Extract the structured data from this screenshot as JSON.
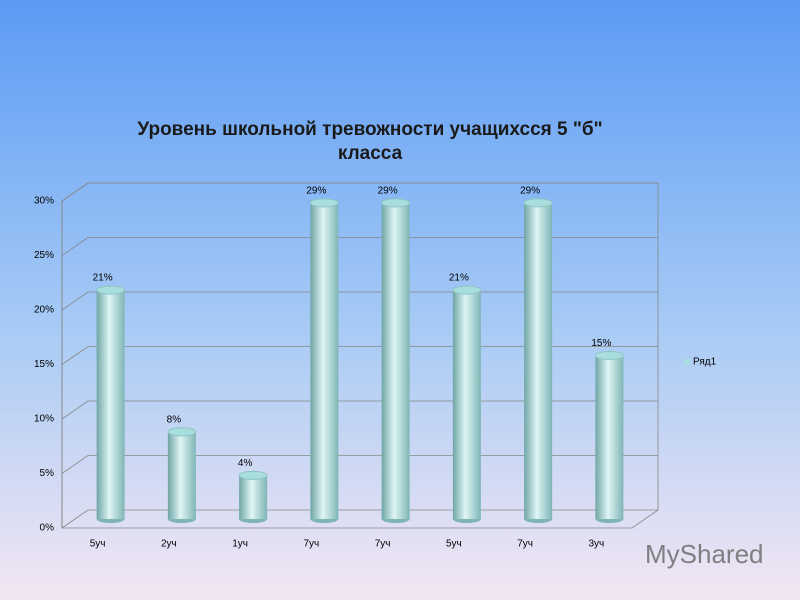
{
  "chart_data": {
    "type": "bar",
    "title": "Уровень школьной тревожности учащихсся 5 \"б\" класса",
    "categories": [
      "5уч",
      "2уч",
      "1уч",
      "7уч",
      "7уч",
      "5уч",
      "7уч",
      "3уч"
    ],
    "series": [
      {
        "name": "Ряд1",
        "color": "#a8dede",
        "values": [
          21,
          8,
          4,
          29,
          29,
          21,
          29,
          15
        ],
        "value_labels": [
          "21%",
          "8%",
          "4%",
          "29%",
          "29%",
          "21%",
          "29%",
          "15%"
        ]
      }
    ],
    "ylim": [
      0,
      30
    ],
    "yticks": [
      {
        "value": 0,
        "label": "0%"
      },
      {
        "value": 5,
        "label": "5%"
      },
      {
        "value": 10,
        "label": "10%"
      },
      {
        "value": 15,
        "label": "15%"
      },
      {
        "value": 20,
        "label": "20%"
      },
      {
        "value": 25,
        "label": "25%"
      },
      {
        "value": 30,
        "label": "30%"
      }
    ],
    "grid": true,
    "legend": "right",
    "watermark": "MyShared"
  }
}
